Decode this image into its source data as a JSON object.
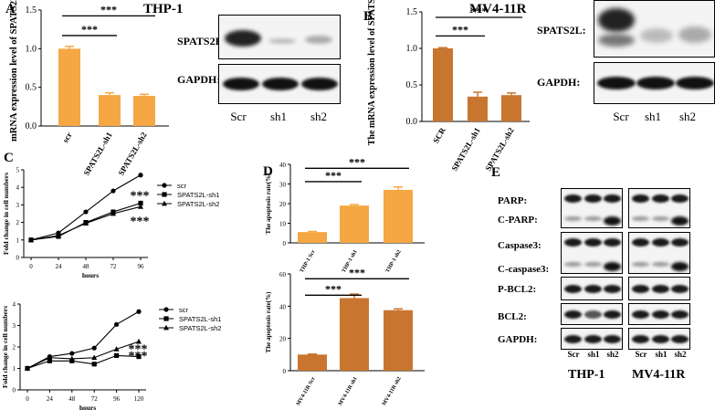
{
  "panels": {
    "A": {
      "letter": "A",
      "title": "THP-1",
      "blot_labels": [
        "SPATS2L:",
        "GAPDH:"
      ],
      "lanes": [
        "Scr",
        "sh1",
        "sh2"
      ]
    },
    "B": {
      "letter": "B",
      "title": "MV4-11R",
      "blot_labels": [
        "SPATS2L:",
        "GAPDH:"
      ],
      "lanes": [
        "Scr",
        "sh1",
        "sh2"
      ]
    },
    "C": {
      "letter": "C"
    },
    "D": {
      "letter": "D"
    },
    "E": {
      "letter": "E",
      "row_labels": [
        "PARP:",
        "C-PARP:",
        "Caspase3:",
        "C-caspase3:",
        "P-BCL2:",
        "BCL2:",
        "GAPDH:"
      ],
      "lanes": [
        "Scr",
        "sh1",
        "sh2"
      ],
      "cell_lines": [
        "THP-1",
        "MV4-11R"
      ]
    }
  },
  "colors": {
    "bar_light": "#f4a742",
    "bar_dark": "#c8752f",
    "line": "#000000"
  },
  "chart_data": [
    {
      "id": "A_bar",
      "type": "bar",
      "categories": [
        "scr",
        "SPATS2L-sh1",
        "SPATS2L-sh2"
      ],
      "values": [
        1.0,
        0.4,
        0.39
      ],
      "errors": [
        0.03,
        0.03,
        0.02
      ],
      "ylabel": "mRNA expression level of SPATS2L",
      "ylim": [
        0,
        1.5
      ],
      "yticks": [
        "0.0",
        "0.5",
        "1.0",
        "1.5"
      ],
      "color": "#f4a742",
      "significance": [
        "***",
        "***"
      ]
    },
    {
      "id": "B_bar",
      "type": "bar",
      "categories": [
        "SCR",
        "SPATS2L-sh1",
        "SPATS2L-sh2"
      ],
      "values": [
        1.0,
        0.34,
        0.36
      ],
      "errors": [
        0.01,
        0.06,
        0.03
      ],
      "ylabel": "The mRNA expression level of SPATS2L",
      "ylim": [
        0,
        1.5
      ],
      "yticks": [
        "0.0",
        "0.5",
        "1.0",
        "1.5"
      ],
      "color": "#c8752f",
      "significance": [
        "***",
        "***"
      ]
    },
    {
      "id": "C_top",
      "type": "line",
      "x": [
        0,
        24,
        48,
        72,
        96
      ],
      "xticks": [
        "0",
        "24",
        "48",
        "72",
        "96"
      ],
      "xlabel": "hours",
      "ylabel": "Fold change in cell numbers",
      "ylim": [
        0,
        5
      ],
      "yticks": [
        "0",
        "1",
        "2",
        "3",
        "4",
        "5"
      ],
      "series": [
        {
          "name": "scr",
          "marker": "circle",
          "values": [
            1.0,
            1.4,
            2.6,
            3.8,
            4.7
          ]
        },
        {
          "name": "SPATS2L-sh1",
          "marker": "square",
          "values": [
            1.0,
            1.2,
            2.0,
            2.6,
            3.1
          ]
        },
        {
          "name": "SPATS2L-sh2",
          "marker": "triangle",
          "values": [
            1.0,
            1.25,
            1.95,
            2.5,
            2.9
          ]
        }
      ],
      "significance": [
        "***",
        "***"
      ]
    },
    {
      "id": "C_bottom",
      "type": "line",
      "x": [
        0,
        24,
        48,
        72,
        96,
        120
      ],
      "xticks": [
        "0",
        "24",
        "48",
        "72",
        "96",
        "120"
      ],
      "xlabel": "hours",
      "ylabel": "Fold change in cell numbers",
      "ylim": [
        0,
        4
      ],
      "yticks": [
        "0",
        "1",
        "2",
        "3",
        "4"
      ],
      "series": [
        {
          "name": "scr",
          "marker": "circle",
          "values": [
            1.0,
            1.55,
            1.7,
            1.95,
            3.05,
            3.65
          ]
        },
        {
          "name": "SPATS2L-sh1",
          "marker": "square",
          "values": [
            1.0,
            1.35,
            1.35,
            1.2,
            1.6,
            1.55
          ]
        },
        {
          "name": "SPATS2L-sh2",
          "marker": "triangle",
          "values": [
            1.0,
            1.5,
            1.45,
            1.5,
            1.9,
            2.25
          ]
        }
      ],
      "significance": [
        "***",
        "***"
      ]
    },
    {
      "id": "D_top",
      "type": "bar",
      "categories": [
        "THP-1 Scr",
        "THP-1 sh1",
        "THP-1 sh2"
      ],
      "values": [
        5.5,
        19.0,
        27.0
      ],
      "errors": [
        0.3,
        0.5,
        1.5
      ],
      "ylabel": "The apoptosis rate(%)",
      "ylim": [
        0,
        40
      ],
      "yticks": [
        "0",
        "10",
        "20",
        "30",
        "40"
      ],
      "color": "#f4a742",
      "significance": [
        "***",
        "***"
      ]
    },
    {
      "id": "D_bottom",
      "type": "bar",
      "categories": [
        "MV4-11R Scr",
        "MV4-11R sh1",
        "MV4-11R sh2"
      ],
      "values": [
        10.0,
        45.0,
        37.5
      ],
      "errors": [
        0.3,
        2.5,
        0.8
      ],
      "ylabel": "The apoptosis rate(%)",
      "ylim": [
        0,
        60
      ],
      "yticks": [
        "0",
        "20",
        "40",
        "60"
      ],
      "color": "#c8752f",
      "significance": [
        "***",
        "***"
      ]
    }
  ]
}
